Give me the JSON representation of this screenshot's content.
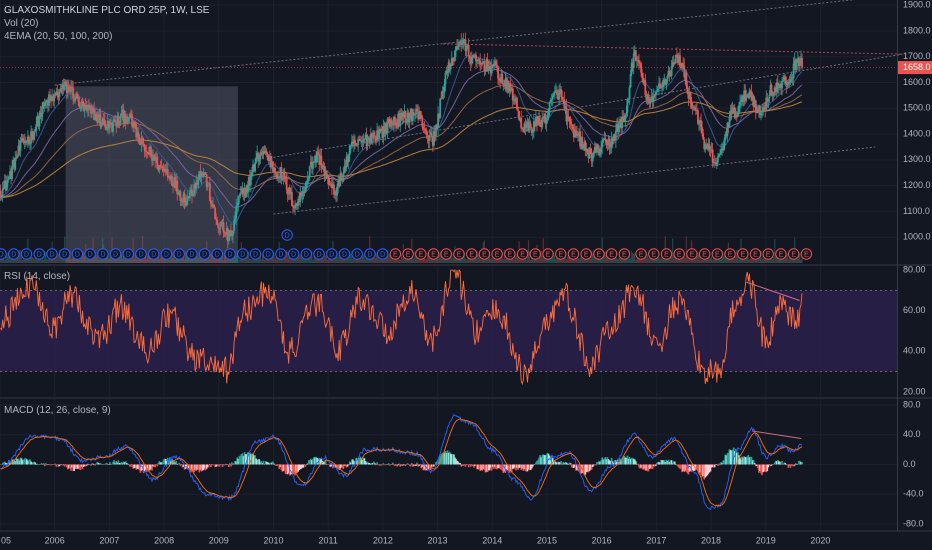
{
  "header": {
    "symbol_line": "GLAXOSMITHKLINE PLC ORD 25P, 1W, LSE",
    "volume_indicator": "Vol (20)",
    "ema_indicator": "4EMA (20, 50, 100, 200)",
    "rsi_indicator": "RSI (14, close)",
    "macd_indicator": "MACD (12, 26, close, 9)"
  },
  "colors": {
    "background": "#131722",
    "up": "#26a69a",
    "down": "#ef5350",
    "rsi_line": "#ff6d3a",
    "rsi_band": "#2a1f4a",
    "macd_line": "#2962ff",
    "signal_line": "#ff6d00",
    "price_tag": "#ef5350"
  },
  "chart_data": [
    {
      "type": "candlestick",
      "name": "price",
      "y_ticks": [
        "1000.0",
        "1100.0",
        "1200.0",
        "1300.0",
        "1400.0",
        "1500.0",
        "1600.0",
        "1700.0",
        "1800.0",
        "1900.0"
      ],
      "ylim": [
        900,
        1920
      ],
      "last_price": "1658.0",
      "x_ticks": [
        "05",
        "2006",
        "2007",
        "2008",
        "2009",
        "2010",
        "2011",
        "2012",
        "2013",
        "2014",
        "2015",
        "2016",
        "2017",
        "2018",
        "2019",
        "2020"
      ],
      "xlim": [
        2005.0,
        2021.4
      ],
      "key_points": [
        {
          "t": 2005.0,
          "v": 1180
        },
        {
          "t": 2005.5,
          "v": 1380
        },
        {
          "t": 2005.9,
          "v": 1530
        },
        {
          "t": 2006.2,
          "v": 1580
        },
        {
          "t": 2006.6,
          "v": 1490
        },
        {
          "t": 2007.0,
          "v": 1430
        },
        {
          "t": 2007.3,
          "v": 1470
        },
        {
          "t": 2007.7,
          "v": 1330
        },
        {
          "t": 2008.0,
          "v": 1260
        },
        {
          "t": 2008.4,
          "v": 1150
        },
        {
          "t": 2008.7,
          "v": 1250
        },
        {
          "t": 2009.0,
          "v": 1050
        },
        {
          "t": 2009.2,
          "v": 1000
        },
        {
          "t": 2009.4,
          "v": 1160
        },
        {
          "t": 2009.8,
          "v": 1330
        },
        {
          "t": 2010.1,
          "v": 1250
        },
        {
          "t": 2010.4,
          "v": 1130
        },
        {
          "t": 2010.8,
          "v": 1310
        },
        {
          "t": 2011.1,
          "v": 1180
        },
        {
          "t": 2011.5,
          "v": 1360
        },
        {
          "t": 2011.9,
          "v": 1400
        },
        {
          "t": 2012.2,
          "v": 1450
        },
        {
          "t": 2012.6,
          "v": 1480
        },
        {
          "t": 2012.9,
          "v": 1380
        },
        {
          "t": 2013.2,
          "v": 1650
        },
        {
          "t": 2013.4,
          "v": 1760
        },
        {
          "t": 2013.7,
          "v": 1680
        },
        {
          "t": 2014.0,
          "v": 1660
        },
        {
          "t": 2014.3,
          "v": 1580
        },
        {
          "t": 2014.6,
          "v": 1420
        },
        {
          "t": 2014.9,
          "v": 1450
        },
        {
          "t": 2015.2,
          "v": 1560
        },
        {
          "t": 2015.5,
          "v": 1400
        },
        {
          "t": 2015.8,
          "v": 1320
        },
        {
          "t": 2016.1,
          "v": 1360
        },
        {
          "t": 2016.4,
          "v": 1450
        },
        {
          "t": 2016.6,
          "v": 1700
        },
        {
          "t": 2016.9,
          "v": 1520
        },
        {
          "t": 2017.1,
          "v": 1600
        },
        {
          "t": 2017.4,
          "v": 1690
        },
        {
          "t": 2017.7,
          "v": 1500
        },
        {
          "t": 2017.9,
          "v": 1350
        },
        {
          "t": 2018.1,
          "v": 1290
        },
        {
          "t": 2018.4,
          "v": 1480
        },
        {
          "t": 2018.7,
          "v": 1560
        },
        {
          "t": 2018.9,
          "v": 1480
        },
        {
          "t": 2019.1,
          "v": 1570
        },
        {
          "t": 2019.4,
          "v": 1600
        },
        {
          "t": 2019.6,
          "v": 1690
        }
      ],
      "channel_top": [
        [
          2006.0,
          1590
        ],
        [
          2021.0,
          1930
        ]
      ],
      "channel_mid": [
        [
          2010.0,
          1310
        ],
        [
          2021.5,
          1710
        ]
      ],
      "channel_bottom": [
        [
          2010.0,
          1090
        ],
        [
          2021.0,
          1350
        ]
      ],
      "resistance_line": [
        [
          2013.1,
          1750
        ],
        [
          2021.5,
          1710
        ]
      ],
      "highlight_box": {
        "t0": 2006.2,
        "t1": 2009.35,
        "top": 1585
      },
      "dividend_markers": {
        "d_count": 31,
        "e_count": 33,
        "t_start": 2005.02,
        "t_end": 2019.67,
        "gap_after_index": 49,
        "lifted_marker": {
          "letter": "D",
          "t": 2010.25
        }
      }
    },
    {
      "type": "line",
      "name": "RSI",
      "y_ticks": [
        "20.00",
        "40.00",
        "60.00",
        "80.00"
      ],
      "ylim": [
        18,
        82
      ],
      "band": [
        30,
        70
      ],
      "key_points": [
        {
          "t": 2005.0,
          "v": 55
        },
        {
          "t": 2005.6,
          "v": 72
        },
        {
          "t": 2006.0,
          "v": 52
        },
        {
          "t": 2006.3,
          "v": 68
        },
        {
          "t": 2006.8,
          "v": 45
        },
        {
          "t": 2007.2,
          "v": 62
        },
        {
          "t": 2007.7,
          "v": 40
        },
        {
          "t": 2008.1,
          "v": 58
        },
        {
          "t": 2008.6,
          "v": 36
        },
        {
          "t": 2009.1,
          "v": 30
        },
        {
          "t": 2009.5,
          "v": 60
        },
        {
          "t": 2009.9,
          "v": 70
        },
        {
          "t": 2010.3,
          "v": 40
        },
        {
          "t": 2010.8,
          "v": 64
        },
        {
          "t": 2011.2,
          "v": 42
        },
        {
          "t": 2011.6,
          "v": 66
        },
        {
          "t": 2012.1,
          "v": 50
        },
        {
          "t": 2012.5,
          "v": 70
        },
        {
          "t": 2012.9,
          "v": 45
        },
        {
          "t": 2013.3,
          "v": 80
        },
        {
          "t": 2013.7,
          "v": 50
        },
        {
          "t": 2014.1,
          "v": 60
        },
        {
          "t": 2014.6,
          "v": 28
        },
        {
          "t": 2015.0,
          "v": 55
        },
        {
          "t": 2015.3,
          "v": 68
        },
        {
          "t": 2015.8,
          "v": 34
        },
        {
          "t": 2016.2,
          "v": 52
        },
        {
          "t": 2016.6,
          "v": 72
        },
        {
          "t": 2017.0,
          "v": 42
        },
        {
          "t": 2017.4,
          "v": 64
        },
        {
          "t": 2017.9,
          "v": 30
        },
        {
          "t": 2018.1,
          "v": 28
        },
        {
          "t": 2018.5,
          "v": 66
        },
        {
          "t": 2018.7,
          "v": 74
        },
        {
          "t": 2019.0,
          "v": 45
        },
        {
          "t": 2019.3,
          "v": 62
        },
        {
          "t": 2019.55,
          "v": 54
        },
        {
          "t": 2019.67,
          "v": 62
        }
      ],
      "divergence_line": [
        [
          2018.65,
          74
        ],
        [
          2019.62,
          65
        ]
      ]
    },
    {
      "type": "bar",
      "name": "MACD",
      "y_ticks": [
        "-80.0",
        "-40.0",
        "0.0",
        "40.0",
        "80.0"
      ],
      "ylim": [
        -88,
        88
      ],
      "macd_key_points": [
        {
          "t": 2005.0,
          "v": -5
        },
        {
          "t": 2005.6,
          "v": 38
        },
        {
          "t": 2006.1,
          "v": 35
        },
        {
          "t": 2006.5,
          "v": 5
        },
        {
          "t": 2006.9,
          "v": 10
        },
        {
          "t": 2007.3,
          "v": 25
        },
        {
          "t": 2007.8,
          "v": -20
        },
        {
          "t": 2008.2,
          "v": 10
        },
        {
          "t": 2008.8,
          "v": -40
        },
        {
          "t": 2009.2,
          "v": -45
        },
        {
          "t": 2009.7,
          "v": 30
        },
        {
          "t": 2010.0,
          "v": 38
        },
        {
          "t": 2010.5,
          "v": -30
        },
        {
          "t": 2010.9,
          "v": 10
        },
        {
          "t": 2011.3,
          "v": -15
        },
        {
          "t": 2011.7,
          "v": 20
        },
        {
          "t": 2012.1,
          "v": 20
        },
        {
          "t": 2012.6,
          "v": 15
        },
        {
          "t": 2012.9,
          "v": -10
        },
        {
          "t": 2013.3,
          "v": 65
        },
        {
          "t": 2013.6,
          "v": 55
        },
        {
          "t": 2014.0,
          "v": 20
        },
        {
          "t": 2014.4,
          "v": -20
        },
        {
          "t": 2014.7,
          "v": -45
        },
        {
          "t": 2015.1,
          "v": 10
        },
        {
          "t": 2015.4,
          "v": 15
        },
        {
          "t": 2015.8,
          "v": -35
        },
        {
          "t": 2016.2,
          "v": 0
        },
        {
          "t": 2016.6,
          "v": 40
        },
        {
          "t": 2016.9,
          "v": 10
        },
        {
          "t": 2017.3,
          "v": 35
        },
        {
          "t": 2017.7,
          "v": -10
        },
        {
          "t": 2017.95,
          "v": -60
        },
        {
          "t": 2018.15,
          "v": -55
        },
        {
          "t": 2018.5,
          "v": 20
        },
        {
          "t": 2018.75,
          "v": 48
        },
        {
          "t": 2019.0,
          "v": 10
        },
        {
          "t": 2019.3,
          "v": 25
        },
        {
          "t": 2019.5,
          "v": 18
        },
        {
          "t": 2019.67,
          "v": 26
        }
      ],
      "divergence_line": [
        [
          2018.75,
          45
        ],
        [
          2019.65,
          35
        ]
      ]
    }
  ]
}
